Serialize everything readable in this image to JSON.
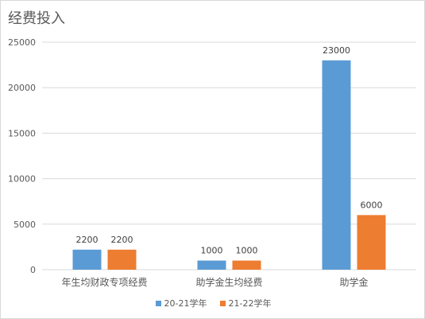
{
  "chart_data": {
    "type": "bar",
    "title": "经费投入",
    "xlabel": "",
    "ylabel": "",
    "categories": [
      "年生均财政专项经费",
      "助学金生均经费",
      "助学金"
    ],
    "series": [
      {
        "name": "20-21学年",
        "values": [
          2200,
          1000,
          23000
        ],
        "labels": [
          "2200",
          "1000",
          "23000"
        ],
        "color": "#5b9bd5"
      },
      {
        "name": "21-22学年",
        "values": [
          2200,
          1000,
          6000
        ],
        "labels": [
          "2200",
          "1000",
          "6000"
        ],
        "color": "#ed7d31"
      }
    ],
    "ylim": [
      0,
      25000
    ],
    "yticks": [
      {
        "value": 0,
        "label": "0"
      },
      {
        "value": 5000,
        "label": "5000"
      },
      {
        "value": 10000,
        "label": "10000"
      },
      {
        "value": 15000,
        "label": "15000"
      },
      {
        "value": 20000,
        "label": "20000"
      },
      {
        "value": 25000,
        "label": "25000"
      }
    ],
    "grid": true,
    "legend_position": "bottom",
    "axis_color": "#d9d9d9",
    "text_color": "#595959"
  }
}
